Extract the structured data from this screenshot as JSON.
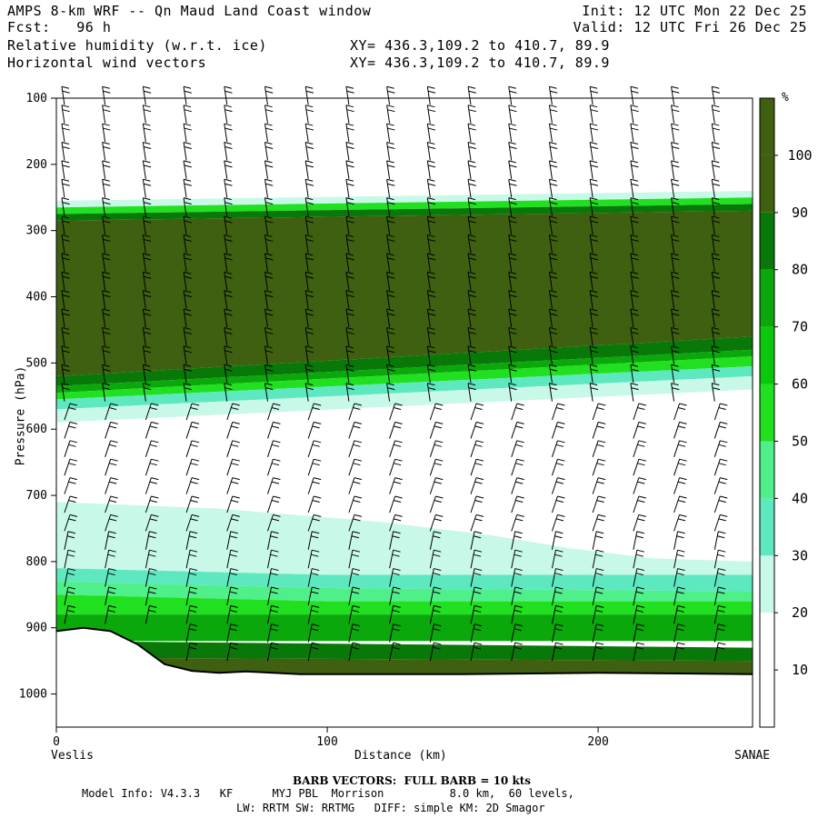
{
  "header": {
    "title": "AMPS 8-km WRF -- Qn Maud Land Coast window",
    "forecast": "Fcst:   96 h",
    "init": "Init: 12 UTC Mon 22 Dec 25",
    "valid": "Valid: 12 UTC Fri 26 Dec 25",
    "field1": "Relative humidity (w.r.t. ice)",
    "field2": "Horizontal wind vectors",
    "xy1": "XY= 436.3,109.2 to 410.7, 89.9",
    "xy2": "XY= 436.3,109.2 to 410.7, 89.9"
  },
  "endpoints": {
    "left": "Veslis",
    "right": "SANAE"
  },
  "footer": {
    "barb_note": "BARB VECTORS:  FULL BARB = 10 kts",
    "model_info": "Model Info: V4.3.3   KF      MYJ PBL  Morrison          8.0 km,  60 levels,",
    "physics": "LW: RRTM SW: RRTMG   DIFF: simple KM: 2D Smagor"
  },
  "colors": {
    "c0": "#ffffff",
    "c30": "#c8f8e8",
    "c40": "#5de8c0",
    "c50": "#4ff08a",
    "c60": "#20e020",
    "c70": "#0cc80c",
    "c80": "#0aa80a",
    "c90": "#087808",
    "c100": "#3e6010",
    "ground": "#ffffff"
  },
  "chart_data": {
    "type": "heatmap",
    "title": "Relative humidity (w.r.t. ice)",
    "xlabel": "Distance (km)",
    "ylabel": "Pressure (hPa)",
    "xlim": [
      0,
      257
    ],
    "ylim": [
      1050,
      100
    ],
    "x_ticks": [
      0,
      100,
      200
    ],
    "y_ticks": [
      100,
      200,
      300,
      400,
      500,
      600,
      700,
      800,
      900,
      1000
    ],
    "colorbar": {
      "unit": "%",
      "levels": [
        10,
        20,
        30,
        40,
        50,
        60,
        70,
        80,
        90,
        100
      ]
    },
    "rh_layers": [
      {
        "level": 30,
        "top": [
          [
            0,
            710
          ],
          [
            60,
            720
          ],
          [
            120,
            740
          ],
          [
            160,
            760
          ],
          [
            190,
            780
          ],
          [
            220,
            795
          ],
          [
            257,
            800
          ]
        ],
        "bottom": [
          [
            0,
            810
          ],
          [
            100,
            820
          ],
          [
            257,
            820
          ]
        ]
      },
      {
        "level": 40,
        "top": [
          [
            0,
            810
          ],
          [
            100,
            820
          ],
          [
            257,
            820
          ]
        ],
        "bottom": [
          [
            0,
            830
          ],
          [
            100,
            840
          ],
          [
            257,
            845
          ]
        ]
      },
      {
        "level": 50,
        "top": [
          [
            0,
            830
          ],
          [
            100,
            840
          ],
          [
            257,
            845
          ]
        ],
        "bottom": [
          [
            0,
            850
          ],
          [
            100,
            860
          ],
          [
            257,
            860
          ]
        ]
      },
      {
        "level": 60,
        "top": [
          [
            0,
            850
          ],
          [
            100,
            860
          ],
          [
            257,
            860
          ]
        ],
        "bottom": [
          [
            0,
            880
          ],
          [
            100,
            880
          ],
          [
            257,
            880
          ]
        ]
      },
      {
        "level": 80,
        "top": [
          [
            0,
            880
          ],
          [
            160,
            880
          ],
          [
            257,
            880
          ]
        ],
        "bottom": [
          [
            0,
            920
          ],
          [
            160,
            920
          ],
          [
            257,
            920
          ]
        ]
      },
      {
        "level": 90,
        "top": [
          [
            0,
            920
          ],
          [
            257,
            930
          ]
        ],
        "bottom": [
          [
            0,
            945
          ],
          [
            257,
            950
          ]
        ]
      },
      {
        "level": 100,
        "top": [
          [
            0,
            945
          ],
          [
            257,
            950
          ]
        ],
        "bottom": [
          [
            0,
            1000
          ],
          [
            257,
            1000
          ]
        ]
      },
      {
        "level": 30,
        "top": [
          [
            0,
            255
          ],
          [
            257,
            240
          ]
        ],
        "bottom": [
          [
            0,
            265
          ],
          [
            257,
            250
          ]
        ]
      },
      {
        "level": 60,
        "top": [
          [
            0,
            265
          ],
          [
            257,
            250
          ]
        ],
        "bottom": [
          [
            0,
            275
          ],
          [
            257,
            260
          ]
        ]
      },
      {
        "level": 90,
        "top": [
          [
            0,
            275
          ],
          [
            257,
            260
          ]
        ],
        "bottom": [
          [
            0,
            285
          ],
          [
            257,
            270
          ]
        ]
      },
      {
        "level": 100,
        "top": [
          [
            0,
            285
          ],
          [
            257,
            270
          ]
        ],
        "bottom": [
          [
            0,
            520
          ],
          [
            257,
            460
          ]
        ]
      },
      {
        "level": 90,
        "top": [
          [
            0,
            520
          ],
          [
            257,
            460
          ]
        ],
        "bottom": [
          [
            0,
            535
          ],
          [
            257,
            480
          ]
        ]
      },
      {
        "level": 80,
        "top": [
          [
            0,
            535
          ],
          [
            257,
            480
          ]
        ],
        "bottom": [
          [
            0,
            545
          ],
          [
            257,
            490
          ]
        ]
      },
      {
        "level": 60,
        "top": [
          [
            0,
            545
          ],
          [
            257,
            490
          ]
        ],
        "bottom": [
          [
            0,
            555
          ],
          [
            257,
            505
          ]
        ]
      },
      {
        "level": 40,
        "top": [
          [
            0,
            555
          ],
          [
            257,
            505
          ]
        ],
        "bottom": [
          [
            0,
            570
          ],
          [
            257,
            520
          ]
        ]
      },
      {
        "level": 30,
        "top": [
          [
            0,
            570
          ],
          [
            257,
            520
          ]
        ],
        "bottom": [
          [
            0,
            590
          ],
          [
            257,
            540
          ]
        ]
      }
    ],
    "terrain": [
      [
        0,
        905
      ],
      [
        10,
        900
      ],
      [
        20,
        905
      ],
      [
        30,
        925
      ],
      [
        40,
        955
      ],
      [
        50,
        965
      ],
      [
        60,
        968
      ],
      [
        70,
        966
      ],
      [
        80,
        968
      ],
      [
        90,
        970
      ],
      [
        100,
        970
      ],
      [
        150,
        970
      ],
      [
        200,
        968
      ],
      [
        257,
        970
      ]
    ],
    "series": [
      {
        "name": "Relative humidity (w.r.t. ice)",
        "values": []
      },
      {
        "name": "Horizontal wind vectors",
        "values": []
      }
    ]
  }
}
